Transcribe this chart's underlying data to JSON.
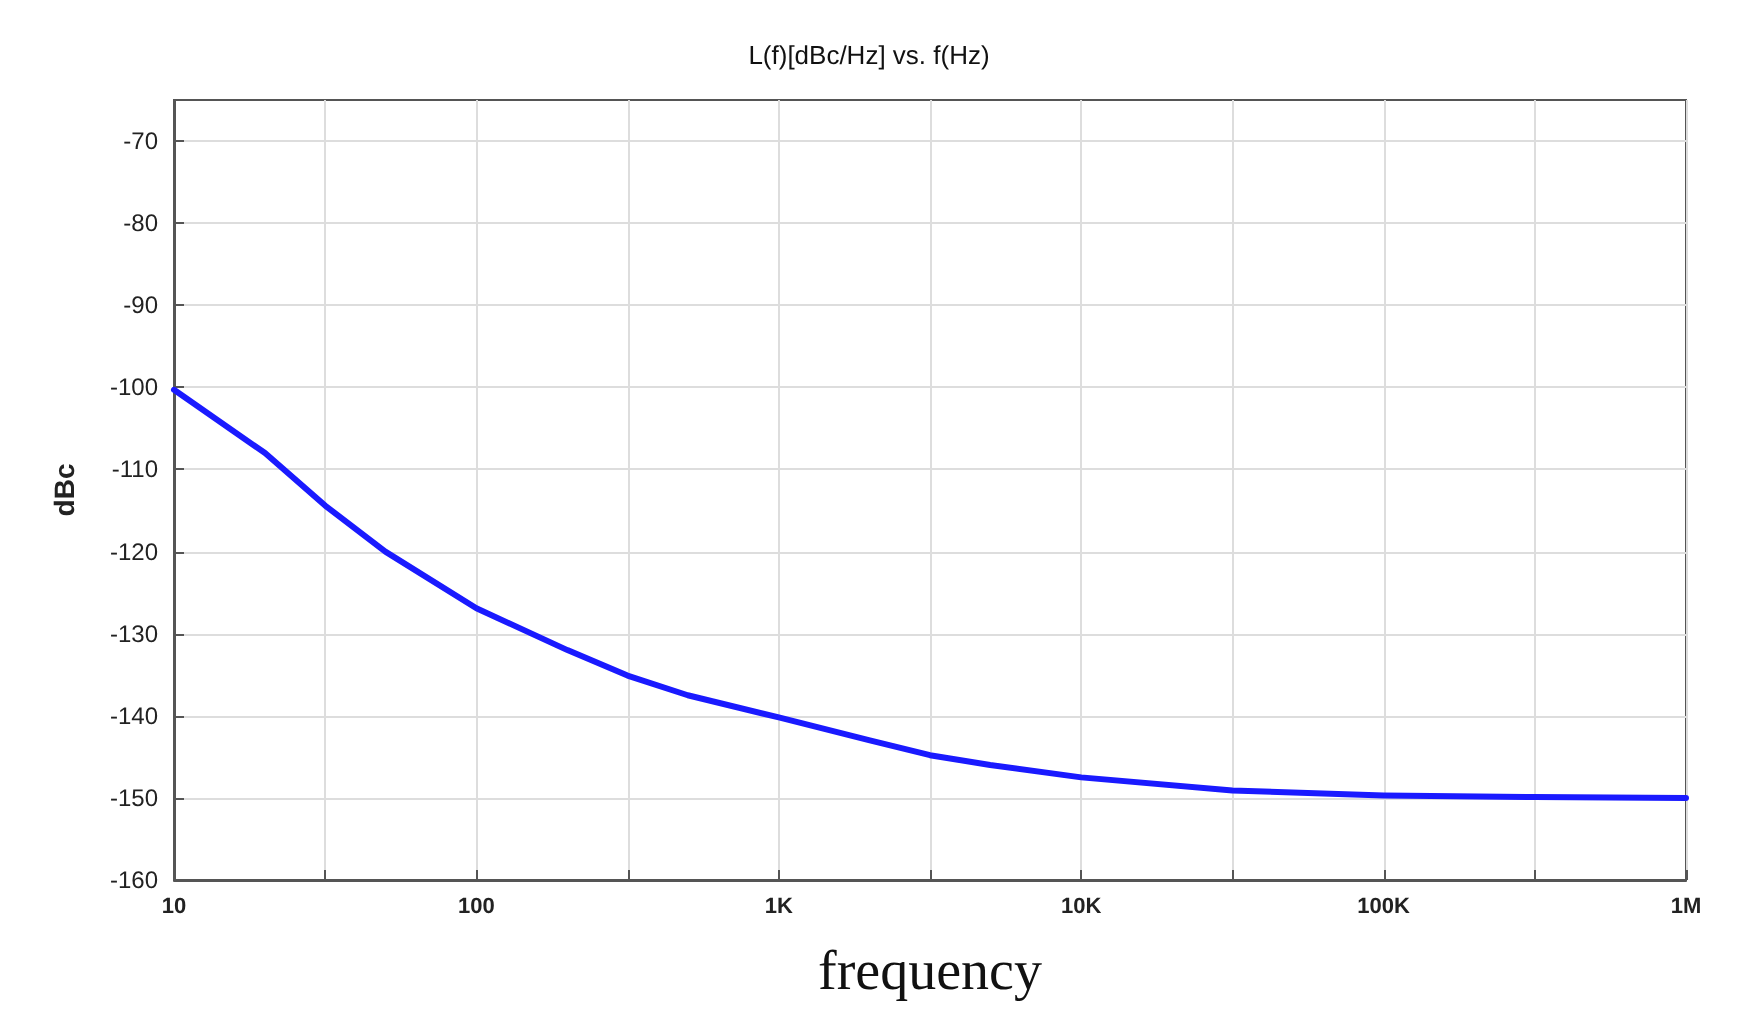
{
  "chart_data": {
    "type": "line",
    "title": "L(f)[dBc/Hz] vs. f(Hz)",
    "xlabel": "frequency",
    "ylabel": "dBc",
    "log": "x",
    "grid": true,
    "marker": "none",
    "line_style": "solid",
    "x": [
      10,
      20,
      31.6,
      50,
      100,
      200,
      316,
      500,
      1000,
      2000,
      3162,
      5000,
      10000,
      31623,
      100000,
      316228,
      1000000
    ],
    "series": [
      {
        "color": "#1a1aff",
        "values": [
          -100.3,
          -108,
          -114.4,
          -120,
          -126.9,
          -132,
          -135.1,
          -137.5,
          -140.2,
          -143,
          -144.8,
          -146,
          -147.5,
          -149.1,
          -149.7,
          -149.9,
          -150
        ]
      }
    ],
    "xlim": [
      10,
      1000000
    ],
    "xticks": [
      {
        "value": 10,
        "label": "10"
      },
      {
        "value": 31.62,
        "label": null
      },
      {
        "value": 100,
        "label": "100"
      },
      {
        "value": 316.2,
        "label": null
      },
      {
        "value": 1000,
        "label": "1K"
      },
      {
        "value": 3162,
        "label": null
      },
      {
        "value": 10000,
        "label": "10K"
      },
      {
        "value": 31623,
        "label": null
      },
      {
        "value": 100000,
        "label": "100K"
      },
      {
        "value": 316228,
        "label": null
      },
      {
        "value": 1000000,
        "label": "1M"
      }
    ],
    "ylim": [
      -160,
      -65
    ],
    "yticks": [
      -160,
      -150,
      -140,
      -130,
      -120,
      -110,
      -100,
      -90,
      -80,
      -70
    ]
  }
}
